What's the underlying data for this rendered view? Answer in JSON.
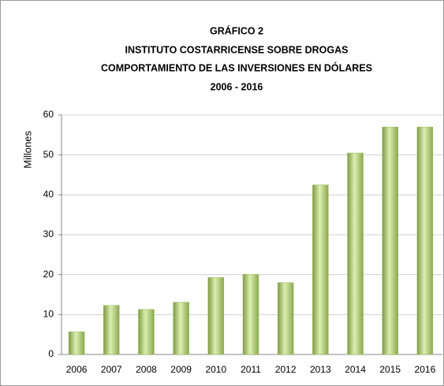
{
  "chart_data": {
    "type": "bar",
    "title": [
      "GRÁFICO 2",
      "INSTITUTO COSTARRICENSE SOBRE DROGAS",
      "COMPORTAMIENTO DE LAS INVERSIONES EN DÓLARES",
      "2006 - 2016"
    ],
    "y_label": "Millones",
    "categories": [
      "2006",
      "2007",
      "2008",
      "2009",
      "2010",
      "2011",
      "2012",
      "2013",
      "2014",
      "2015",
      "2016"
    ],
    "values": [
      5.7,
      12.3,
      11.3,
      13.1,
      19.3,
      20.1,
      18,
      42.5,
      50.5,
      57,
      57
    ],
    "color": "#9bbb59",
    "ylim": [
      0,
      60
    ],
    "yticks": [
      0,
      10,
      20,
      30,
      40,
      50,
      60
    ],
    "grid": true
  }
}
